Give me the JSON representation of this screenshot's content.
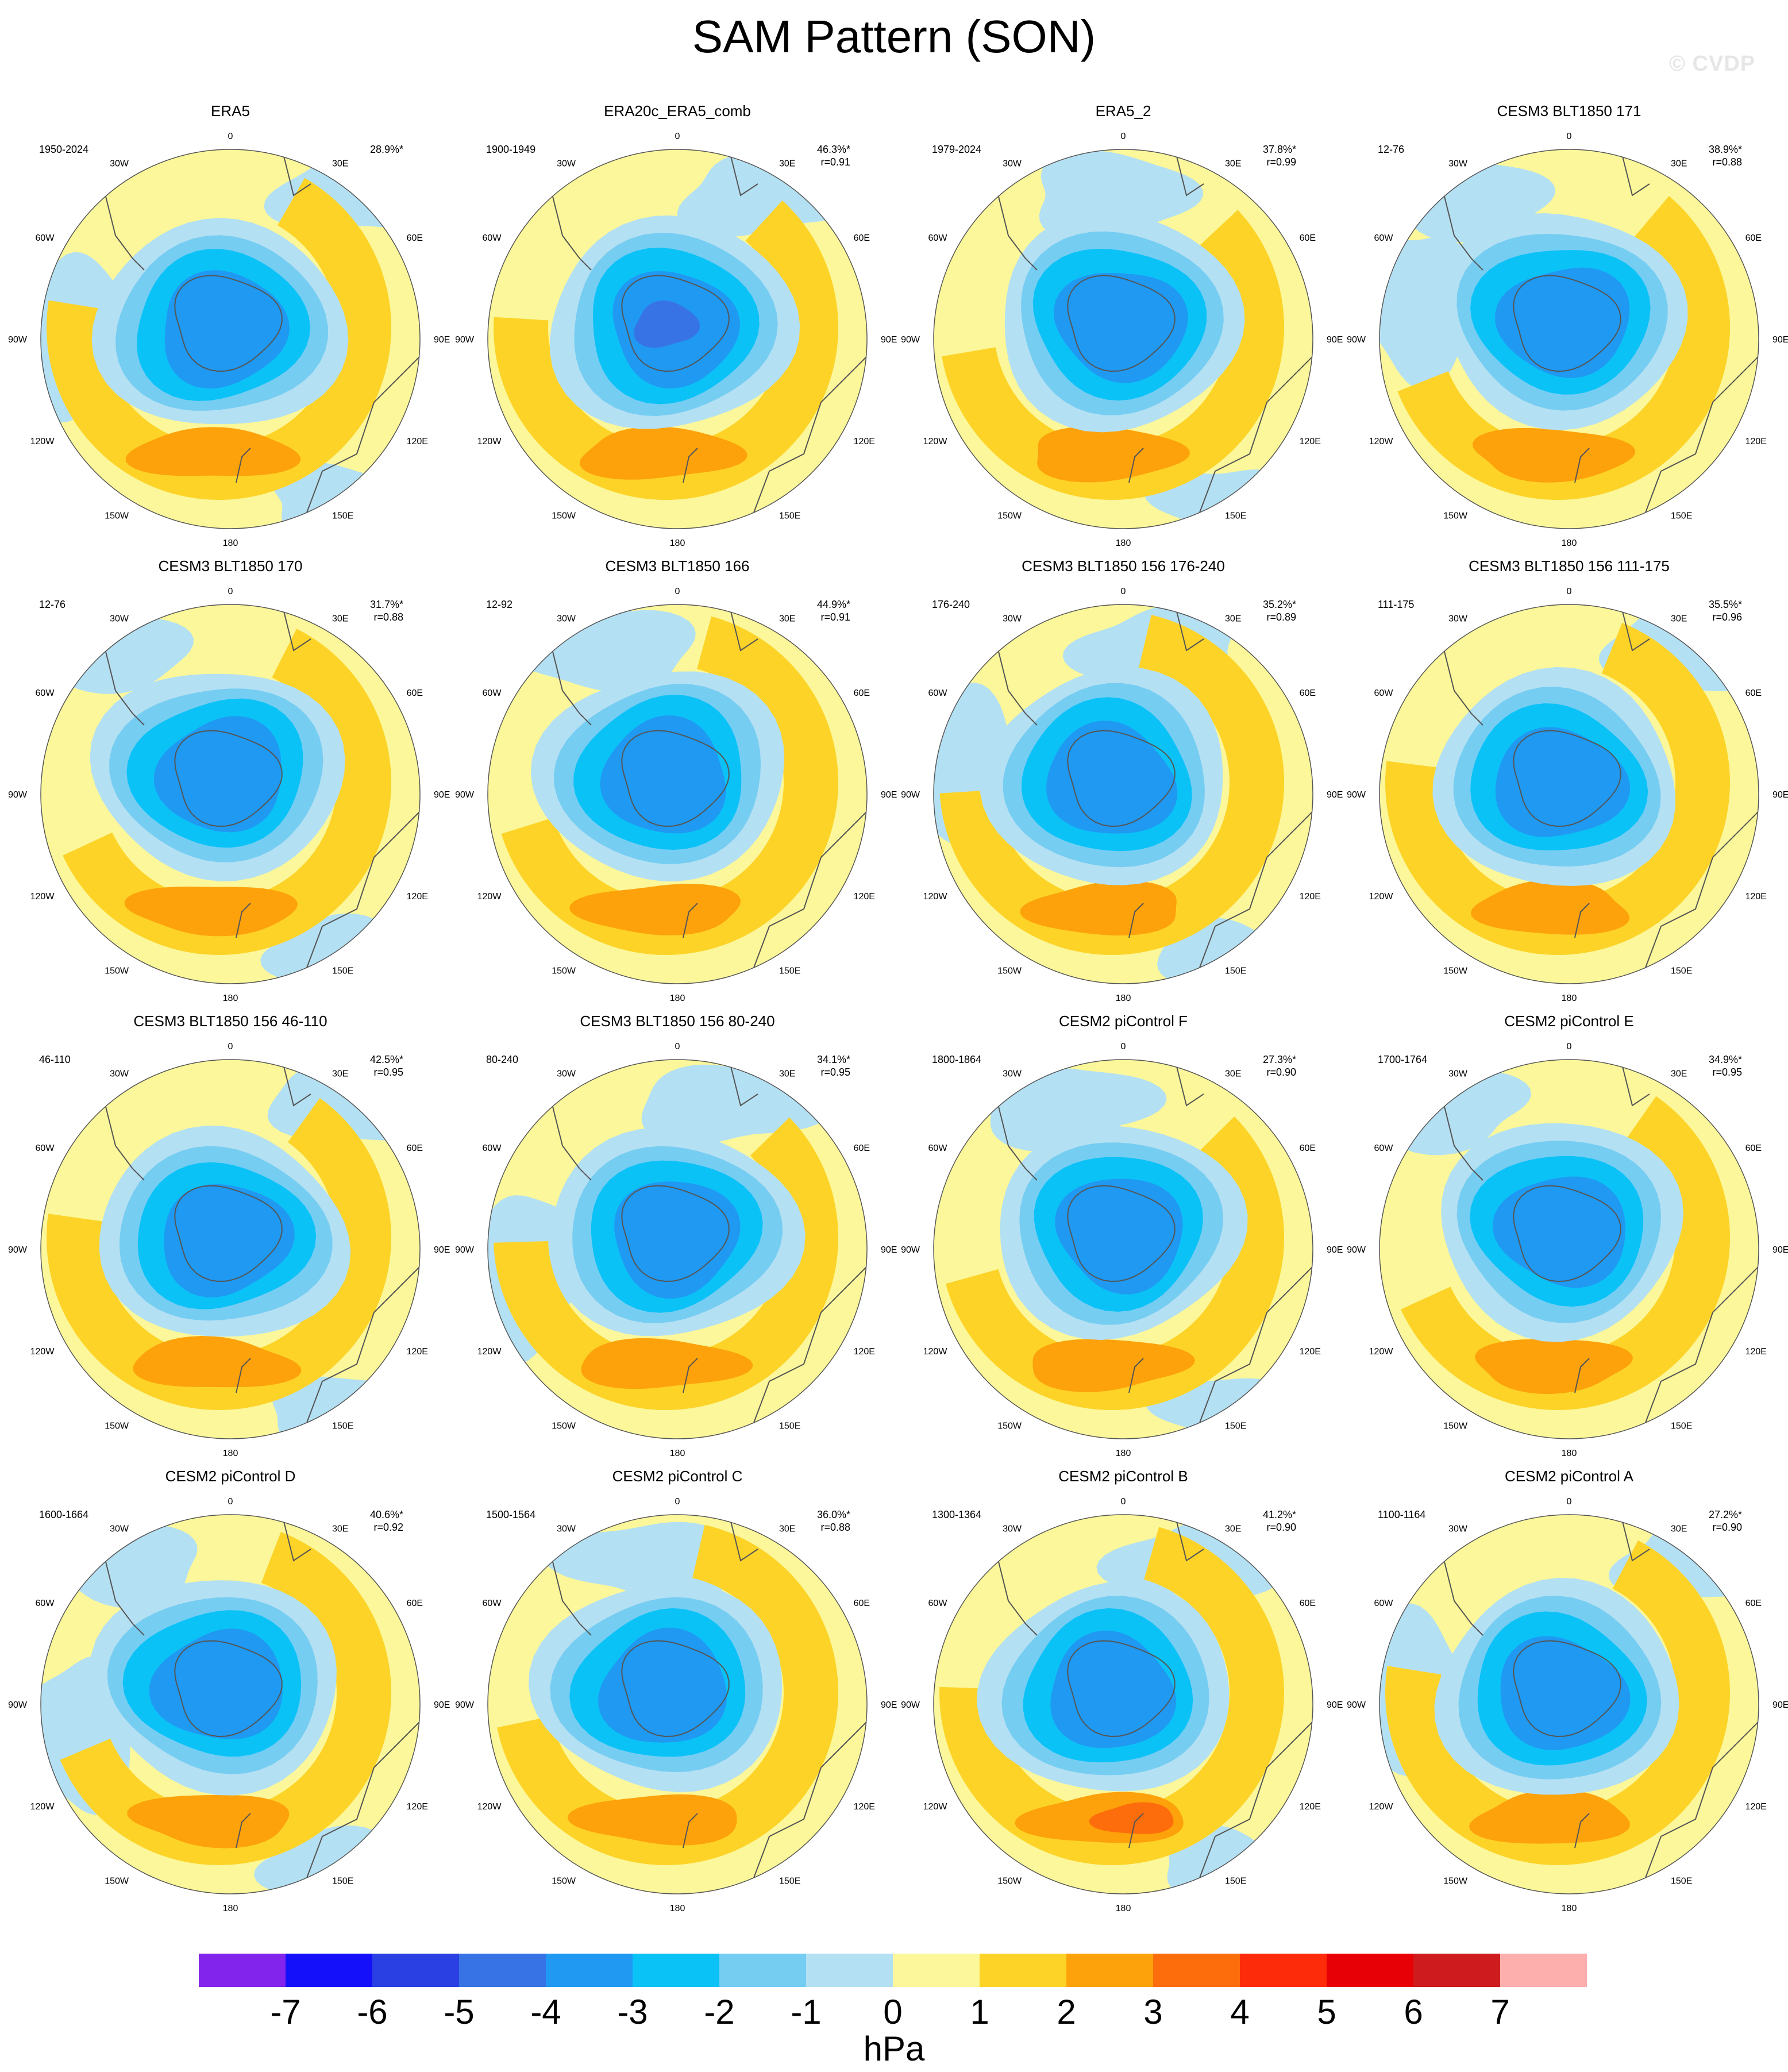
{
  "title": "SAM Pattern (SON)",
  "watermark": "© CVDP",
  "colors": {
    "land_outline": "#555555",
    "frame": "#555555",
    "levels": [
      "#8224eb",
      "#1510fa",
      "#2b40e3",
      "#3873e6",
      "#1f99f2",
      "#0bc2f7",
      "#76cdf2",
      "#b4e0f3",
      "#fbf79a",
      "#fdd328",
      "#fda20b",
      "#fd6d0c",
      "#fd2b0a",
      "#e80007",
      "#ce1b1d",
      "#fdafae"
    ]
  },
  "panels": [
    {
      "title": "ERA5",
      "years": "1950-2024",
      "stat": "28.9%*",
      "corr": ""
    },
    {
      "title": "ERA20c_ERA5_comb",
      "years": "1900-1949",
      "stat": "46.3%*",
      "corr": "r=0.91"
    },
    {
      "title": "ERA5_2",
      "years": "1979-2024",
      "stat": "37.8%*",
      "corr": "r=0.99"
    },
    {
      "title": "CESM3 BLT1850 171",
      "years": "12-76",
      "stat": "38.9%*",
      "corr": "r=0.88"
    },
    {
      "title": "CESM3 BLT1850 170",
      "years": "12-76",
      "stat": "31.7%*",
      "corr": "r=0.88"
    },
    {
      "title": "CESM3 BLT1850 166",
      "years": "12-92",
      "stat": "44.9%*",
      "corr": "r=0.91"
    },
    {
      "title": "CESM3 BLT1850 156 176-240",
      "years": "176-240",
      "stat": "35.2%*",
      "corr": "r=0.89"
    },
    {
      "title": "CESM3 BLT1850 156 111-175",
      "years": "111-175",
      "stat": "35.5%*",
      "corr": "r=0.96"
    },
    {
      "title": "CESM3 BLT1850 156 46-110",
      "years": "46-110",
      "stat": "42.5%*",
      "corr": "r=0.95"
    },
    {
      "title": "CESM3 BLT1850 156 80-240",
      "years": "80-240",
      "stat": "34.1%*",
      "corr": "r=0.95"
    },
    {
      "title": "CESM2 piControl F",
      "years": "1800-1864",
      "stat": "27.3%*",
      "corr": "r=0.90"
    },
    {
      "title": "CESM2 piControl E",
      "years": "1700-1764",
      "stat": "34.9%*",
      "corr": "r=0.95"
    },
    {
      "title": "CESM2 piControl D",
      "years": "1600-1664",
      "stat": "40.6%*",
      "corr": "r=0.92"
    },
    {
      "title": "CESM2 piControl C",
      "years": "1500-1564",
      "stat": "36.0%*",
      "corr": "r=0.88"
    },
    {
      "title": "CESM2 piControl B",
      "years": "1300-1364",
      "stat": "41.2%*",
      "corr": "r=0.90"
    },
    {
      "title": "CESM2 piControl A",
      "years": "1100-1164",
      "stat": "27.2%*",
      "corr": "r=0.90"
    }
  ],
  "longitude_labels": [
    "0",
    "30E",
    "60E",
    "90E",
    "120E",
    "150E",
    "180",
    "150W",
    "120W",
    "90W",
    "60W",
    "30W"
  ],
  "colorbar": {
    "ticks": [
      "-7",
      "-6",
      "-5",
      "-4",
      "-3",
      "-2",
      "-1",
      "0",
      "1",
      "2",
      "3",
      "4",
      "5",
      "6",
      "7"
    ],
    "unit": "hPa"
  },
  "chart_data": {
    "type": "heatmap",
    "projection": "south-polar-stereographic",
    "variable": "SAM pattern, sea level pressure anomaly",
    "season": "SON",
    "unit": "hPa",
    "contour_levels": [
      -7,
      -6,
      -5,
      -4,
      -3,
      -2,
      -1,
      0,
      1,
      2,
      3,
      4,
      5,
      6,
      7
    ],
    "panels": [
      {
        "name": "ERA5",
        "explained_variance_pct": 28.9,
        "pattern_corr": null,
        "min_hPa": -4.5,
        "max_hPa": 2.5
      },
      {
        "name": "ERA20c_ERA5_comb",
        "explained_variance_pct": 46.3,
        "pattern_corr": 0.91,
        "min_hPa": -5.5,
        "max_hPa": 1.5
      },
      {
        "name": "ERA5_2",
        "explained_variance_pct": 37.8,
        "pattern_corr": 0.99,
        "min_hPa": -4.5,
        "max_hPa": 2.5
      },
      {
        "name": "CESM3 BLT1850 171",
        "explained_variance_pct": 38.9,
        "pattern_corr": 0.88,
        "min_hPa": -3.5,
        "max_hPa": 2.5
      },
      {
        "name": "CESM3 BLT1850 170",
        "explained_variance_pct": 31.7,
        "pattern_corr": 0.88,
        "min_hPa": -3.5,
        "max_hPa": 1.5
      },
      {
        "name": "CESM3 BLT1850 166",
        "explained_variance_pct": 44.9,
        "pattern_corr": 0.91,
        "min_hPa": -4.5,
        "max_hPa": 1.5
      },
      {
        "name": "CESM3 BLT1850 156 176-240",
        "explained_variance_pct": 35.2,
        "pattern_corr": 0.89,
        "min_hPa": -3.5,
        "max_hPa": 1.5
      },
      {
        "name": "CESM3 BLT1850 156 111-175",
        "explained_variance_pct": 35.5,
        "pattern_corr": 0.96,
        "min_hPa": -4.5,
        "max_hPa": 2.5
      },
      {
        "name": "CESM3 BLT1850 156 46-110",
        "explained_variance_pct": 42.5,
        "pattern_corr": 0.95,
        "min_hPa": -4.5,
        "max_hPa": 2.5
      },
      {
        "name": "CESM3 BLT1850 156 80-240",
        "explained_variance_pct": 34.1,
        "pattern_corr": 0.95,
        "min_hPa": -4.5,
        "max_hPa": 1.5
      },
      {
        "name": "CESM2 piControl F",
        "explained_variance_pct": 27.3,
        "pattern_corr": 0.9,
        "min_hPa": -4.5,
        "max_hPa": 2.5
      },
      {
        "name": "CESM2 piControl E",
        "explained_variance_pct": 34.9,
        "pattern_corr": 0.95,
        "min_hPa": -4.5,
        "max_hPa": 2.5
      },
      {
        "name": "CESM2 piControl D",
        "explained_variance_pct": 40.6,
        "pattern_corr": 0.92,
        "min_hPa": -4.5,
        "max_hPa": 2.5
      },
      {
        "name": "CESM2 piControl C",
        "explained_variance_pct": 36.0,
        "pattern_corr": 0.88,
        "min_hPa": -4.5,
        "max_hPa": 1.5
      },
      {
        "name": "CESM2 piControl B",
        "explained_variance_pct": 41.2,
        "pattern_corr": 0.9,
        "min_hPa": -4.5,
        "max_hPa": 3.5
      },
      {
        "name": "CESM2 piControl A",
        "explained_variance_pct": 27.2,
        "pattern_corr": 0.9,
        "min_hPa": -3.5,
        "max_hPa": 1.5
      }
    ]
  }
}
